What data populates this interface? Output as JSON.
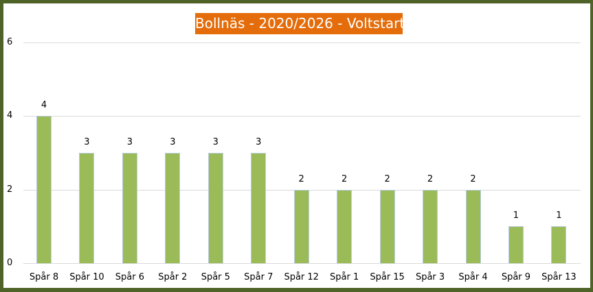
{
  "chart_data": {
    "type": "bar",
    "title": "Bollnäs - 2020/2026 - Voltstart",
    "xlabel": "",
    "ylabel": "",
    "ylim": [
      0,
      6
    ],
    "yticks": [
      "0",
      "2",
      "4",
      "6"
    ],
    "grid": true,
    "legend": null,
    "categories": [
      "Spår 8",
      "Spår 10",
      "Spår 6",
      "Spår 2",
      "Spår 5",
      "Spår 7",
      "Spår 12",
      "Spår 1",
      "Spår 15",
      "Spår 3",
      "Spår 4",
      "Spår 9",
      "Spår 13"
    ],
    "values": [
      4,
      3,
      3,
      3,
      3,
      3,
      2,
      2,
      2,
      2,
      2,
      1,
      1
    ],
    "data_labels": [
      "4",
      "3",
      "3",
      "3",
      "3",
      "3",
      "2",
      "2",
      "2",
      "2",
      "2",
      "1",
      "1"
    ],
    "colors": {
      "bar": "#9bbb59",
      "title_bg": "#e46c0a",
      "title_text": "#ffffff",
      "frame": "#4f6228",
      "grid": "#d9d9d9"
    }
  }
}
